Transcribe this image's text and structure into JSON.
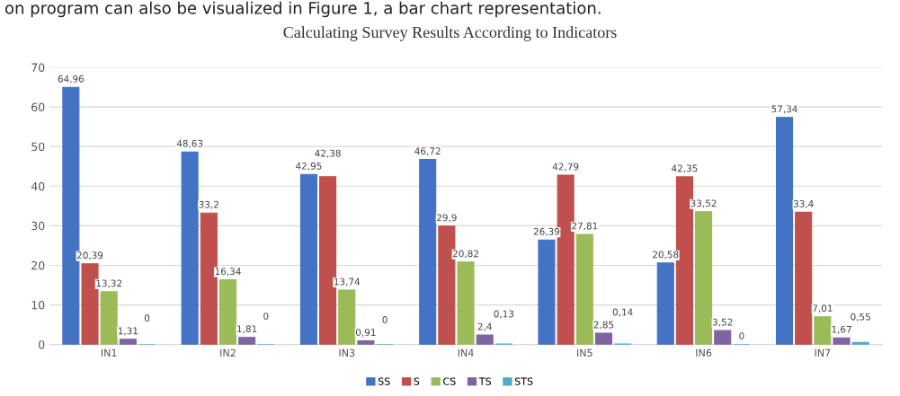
{
  "chart_data": {
    "type": "bar",
    "title": "Calculating Survey Results According to Indicators",
    "annotations": [
      "on program can also be visualized in Figure 1, a bar chart representation."
    ],
    "categories": [
      "IN1",
      "IN2",
      "IN3",
      "IN4",
      "IN5",
      "IN6",
      "IN7"
    ],
    "series": [
      {
        "name": "SS",
        "color": "#4472c4",
        "values": [
          64.96,
          48.63,
          42.95,
          46.72,
          26.39,
          20.58,
          57.34
        ],
        "value_labels": [
          "64,96",
          "48,63",
          "42,95",
          "46,72",
          "26,39",
          "20,58",
          "57,34"
        ]
      },
      {
        "name": "S",
        "color": "#c0504d",
        "values": [
          20.39,
          33.2,
          42.38,
          29.9,
          42.79,
          42.35,
          33.4
        ],
        "value_labels": [
          "20,39",
          "33,2",
          "42,38",
          "29,9",
          "42,79",
          "42,35",
          "33,4"
        ]
      },
      {
        "name": "CS",
        "color": "#9bbb59",
        "values": [
          13.32,
          16.34,
          13.74,
          20.82,
          27.81,
          33.52,
          7.01
        ],
        "value_labels": [
          "13,32",
          "16,34",
          "13,74",
          "20,82",
          "27,81",
          "33,52",
          "7,01"
        ]
      },
      {
        "name": "TS",
        "color": "#8064a2",
        "values": [
          1.31,
          1.81,
          0.91,
          2.4,
          2.85,
          3.52,
          1.67
        ],
        "value_labels": [
          "1,31",
          "1,81",
          "0,91",
          "2,4",
          "2,85",
          "3,52",
          "1,67"
        ]
      },
      {
        "name": "STS",
        "color": "#4bacc6",
        "values": [
          0,
          0,
          0,
          0.13,
          0.14,
          0,
          0.55
        ],
        "value_labels": [
          "0",
          "0",
          "0",
          "0,13",
          "0,14",
          "0",
          "0,55"
        ]
      }
    ],
    "ylim": [
      0,
      70
    ],
    "yticks": [
      0,
      10,
      20,
      30,
      40,
      50,
      60,
      70
    ],
    "grid": "y",
    "legend": "bottom"
  }
}
